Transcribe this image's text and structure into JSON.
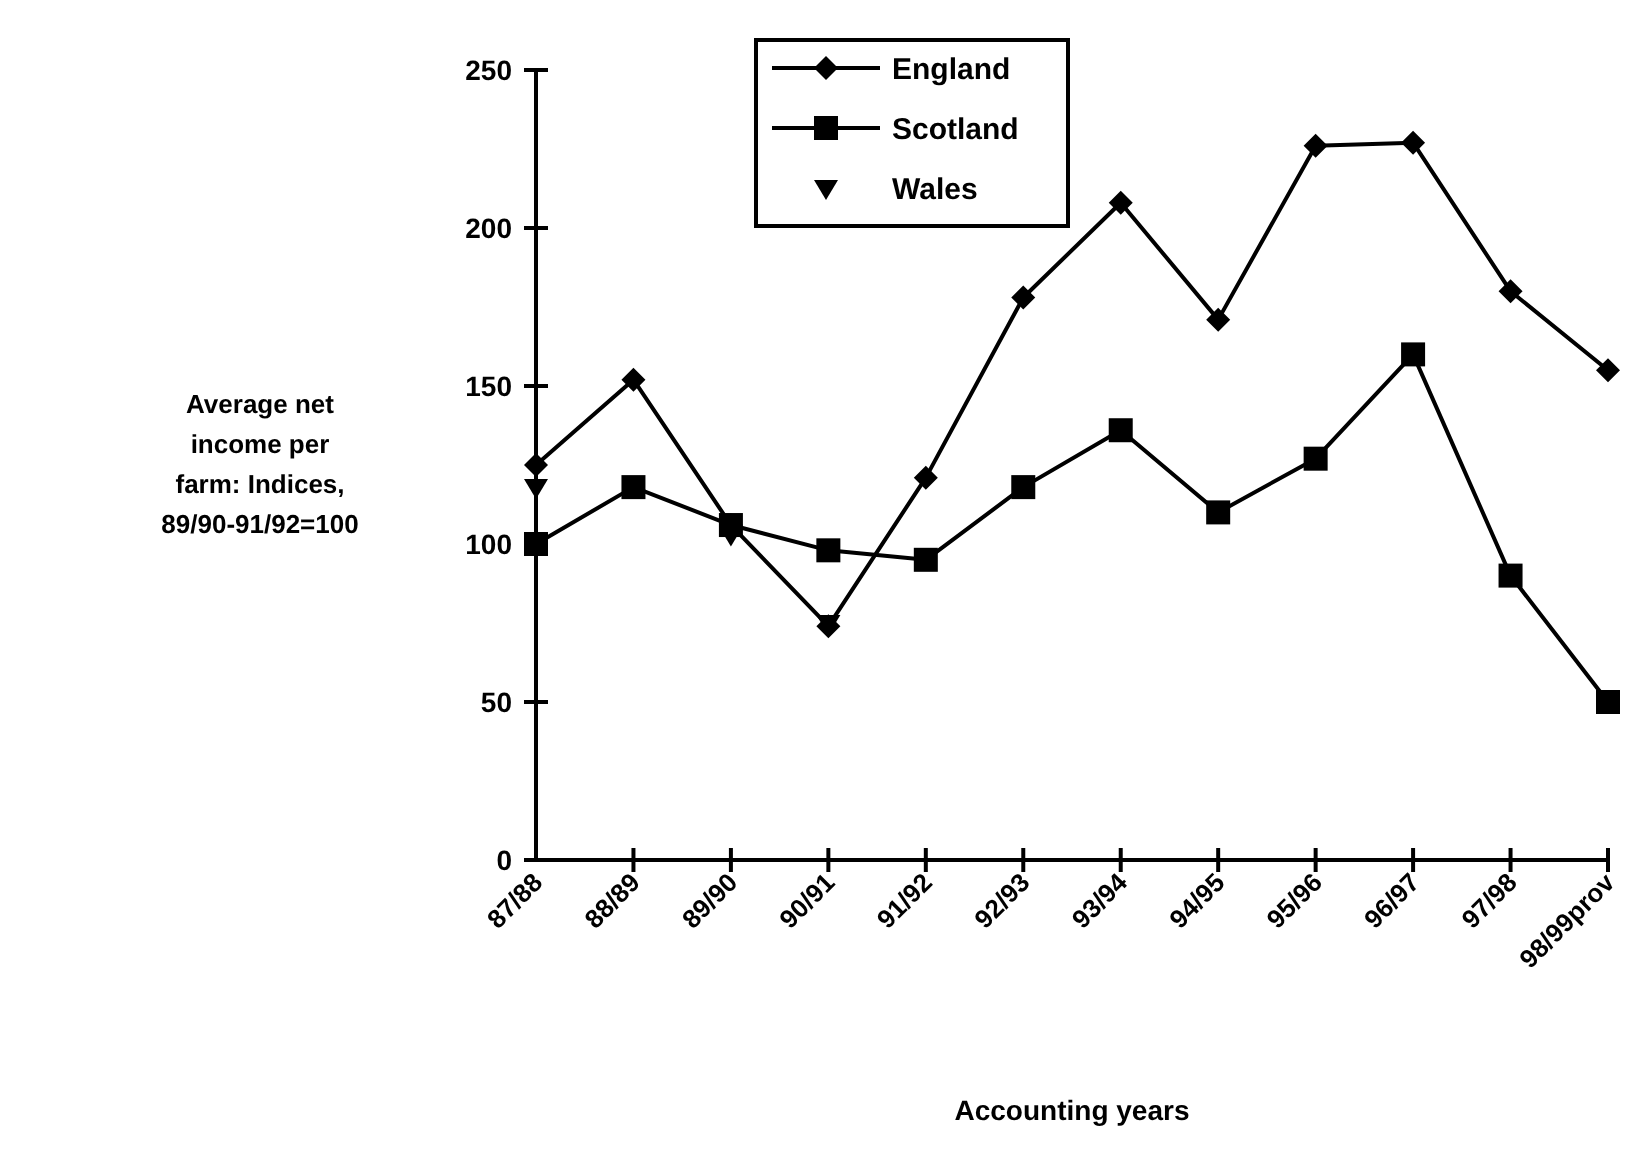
{
  "chart_data": {
    "type": "line",
    "xlabel": "Accounting years",
    "ylabel": "Average net income per farm: Indices, 89/90-91/92=100",
    "categories": [
      "87/88",
      "88/89",
      "89/90",
      "90/91",
      "91/92",
      "92/93",
      "93/94",
      "94/95",
      "95/96",
      "96/97",
      "97/98",
      "98/99prov"
    ],
    "series": [
      {
        "name": "England",
        "color": "#000000",
        "marker": "diamond",
        "values": [
          125,
          152,
          106,
          74,
          121,
          178,
          208,
          171,
          226,
          227,
          180,
          155
        ]
      },
      {
        "name": "Scotland",
        "color": "#000000",
        "marker": "square",
        "values": [
          100,
          118,
          106,
          98,
          95,
          118,
          136,
          110,
          127,
          160,
          90,
          50
        ]
      },
      {
        "name": "Wales",
        "type": "scatter",
        "color": "#000000",
        "marker": "triangle",
        "values": [
          118,
          null,
          103,
          75,
          null,
          null,
          null,
          null,
          null,
          null,
          null,
          null
        ]
      }
    ],
    "ylim": [
      0,
      250
    ],
    "yticks": [
      0,
      50,
      100,
      150,
      200,
      250
    ],
    "legend": "top",
    "grid": false
  }
}
